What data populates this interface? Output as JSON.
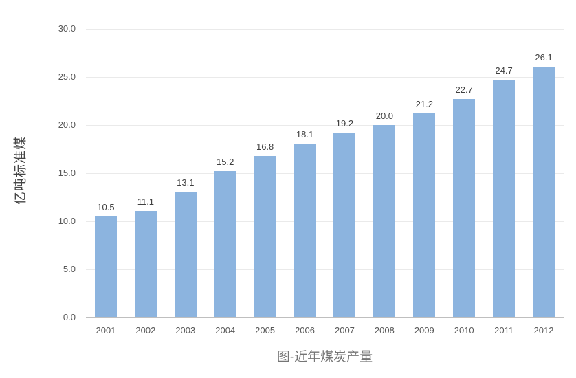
{
  "chart_data": {
    "type": "bar",
    "title": "图-近年煤炭产量",
    "xlabel": "",
    "ylabel": "亿吨标准煤",
    "categories": [
      "2001",
      "2002",
      "2003",
      "2004",
      "2005",
      "2006",
      "2007",
      "2008",
      "2009",
      "2010",
      "2011",
      "2012"
    ],
    "values": [
      10.5,
      11.1,
      13.1,
      15.2,
      16.8,
      18.1,
      19.2,
      20.0,
      21.2,
      22.7,
      24.7,
      26.1
    ],
    "value_labels": [
      "10.5",
      "11.1",
      "13.1",
      "15.2",
      "16.8",
      "18.1",
      "19.2",
      "20.0",
      "21.2",
      "22.7",
      "24.7",
      "26.1"
    ],
    "ylim": [
      0,
      30
    ],
    "ytick_step": 5,
    "ytick_labels": [
      "0.0",
      "5.0",
      "10.0",
      "15.0",
      "20.0",
      "25.0",
      "30.0"
    ],
    "grid": true,
    "legend_position": "none",
    "colors": {
      "bar": "#8CB4DF",
      "gridline": "#EAEAEA",
      "axis_line": "#BFBFBF",
      "tick_label": "#595959",
      "data_label": "#404040",
      "title": "#757575",
      "y_axis_title": "#454545",
      "background": "#FFFFFF"
    }
  }
}
